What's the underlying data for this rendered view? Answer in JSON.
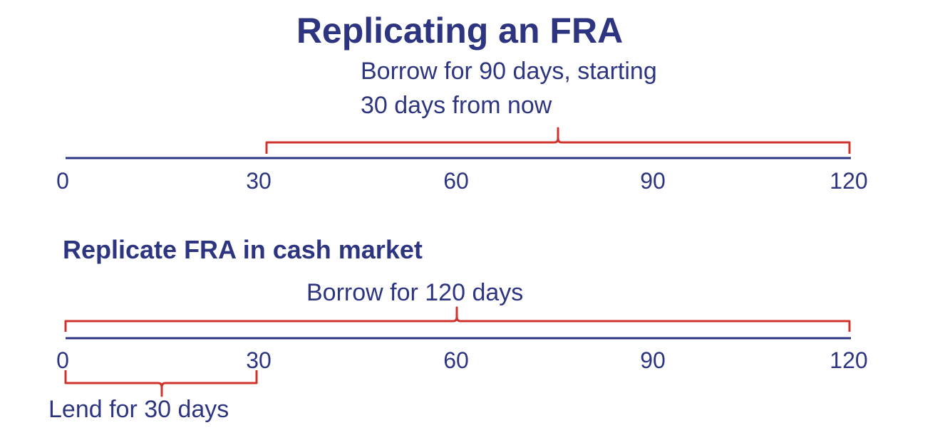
{
  "title": "Replicating an FRA",
  "top": {
    "caption_line1": "Borrow for 90 days, starting",
    "caption_line2": "30 days from now",
    "ticks": [
      "0",
      "30",
      "60",
      "90",
      "120"
    ],
    "bracket_range_days": [
      30,
      120
    ]
  },
  "bottom": {
    "heading": "Replicate FRA in cash market",
    "borrow_caption": "Borrow for 120 days",
    "borrow_range_days": [
      0,
      120
    ],
    "lend_caption": "Lend for 30 days",
    "lend_range_days": [
      0,
      30
    ],
    "ticks": [
      "0",
      "30",
      "60",
      "90",
      "120"
    ]
  },
  "colors": {
    "axis": "#2e3580",
    "bracket": "#d0332b",
    "text": "#2e3580"
  }
}
